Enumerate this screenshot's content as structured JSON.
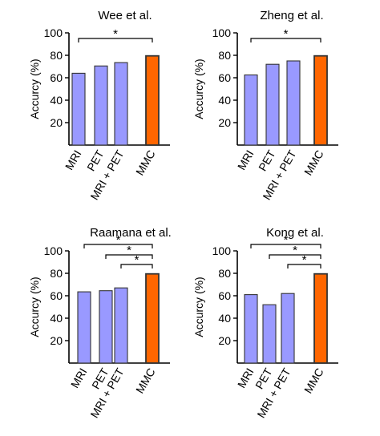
{
  "chart_data": [
    {
      "type": "bar",
      "title": "Wee et al.",
      "ylabel": "Accurcy (%)",
      "ylim": [
        0,
        100
      ],
      "yticks": [
        20,
        40,
        60,
        80,
        100
      ],
      "categories": [
        "MRI",
        "PET",
        "MRI + PET",
        "MMC"
      ],
      "values": [
        64,
        70.5,
        73.5,
        79.5
      ],
      "bar_colors": [
        "#9999ff",
        "#9999ff",
        "#9999ff",
        "#ff6600"
      ],
      "significance": [
        {
          "from": 0,
          "to": 3,
          "label": "*"
        }
      ]
    },
    {
      "type": "bar",
      "title": "Zheng et al.",
      "ylabel": "Accurcy (%)",
      "ylim": [
        0,
        100
      ],
      "yticks": [
        20,
        40,
        60,
        80,
        100
      ],
      "categories": [
        "MRI",
        "PET",
        "MRI + PET",
        "MMC"
      ],
      "values": [
        62.5,
        72,
        75,
        79.5
      ],
      "bar_colors": [
        "#9999ff",
        "#9999ff",
        "#9999ff",
        "#ff6600"
      ],
      "significance": [
        {
          "from": 0,
          "to": 3,
          "label": "*"
        }
      ]
    },
    {
      "type": "bar",
      "title": "Raamana et al.",
      "ylabel": "Accurcy (%)",
      "ylim": [
        0,
        100
      ],
      "yticks": [
        20,
        40,
        60,
        80,
        100
      ],
      "categories": [
        "MRI",
        "PET",
        "MRI + PET",
        "MMC"
      ],
      "values": [
        63.5,
        64.5,
        67,
        79.5
      ],
      "bar_colors": [
        "#9999ff",
        "#9999ff",
        "#9999ff",
        "#ff6600"
      ],
      "significance": [
        {
          "from": 0,
          "to": 3,
          "label": "*"
        },
        {
          "from": 1,
          "to": 3,
          "label": "*"
        },
        {
          "from": 2,
          "to": 3,
          "label": "*"
        }
      ]
    },
    {
      "type": "bar",
      "title": "Kong et al.",
      "ylabel": "Accurcy (%)",
      "ylim": [
        0,
        100
      ],
      "yticks": [
        20,
        40,
        60,
        80,
        100
      ],
      "categories": [
        "MRI",
        "PET",
        "MRI + PET",
        "MMC"
      ],
      "values": [
        61,
        52,
        62,
        79.5
      ],
      "bar_colors": [
        "#9999ff",
        "#9999ff",
        "#9999ff",
        "#ff6600"
      ],
      "significance": [
        {
          "from": 0,
          "to": 3,
          "label": "*"
        },
        {
          "from": 1,
          "to": 3,
          "label": "*"
        },
        {
          "from": 2,
          "to": 3,
          "label": "*"
        }
      ]
    }
  ]
}
